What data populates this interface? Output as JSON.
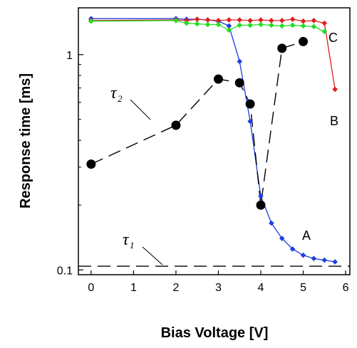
{
  "chart_data": {
    "type": "line",
    "xlabel": "Bias Voltage [V]",
    "ylabel": "Response time [ms]",
    "xlim": [
      -0.3,
      6.1
    ],
    "ylim": [
      0.095,
      1.65
    ],
    "yscale": "log",
    "x_ticks": [
      "0",
      "1",
      "2",
      "3",
      "4",
      "5",
      "6"
    ],
    "y_ticks": [
      "0.1",
      "1"
    ],
    "grid": false,
    "series": [
      {
        "label": "A",
        "color": "#1f3fe0",
        "style": "solid",
        "marker": "diamond",
        "x": [
          0,
          2,
          2.25,
          2.5,
          2.75,
          3,
          3.25,
          3.5,
          3.75,
          4,
          4.25,
          4.5,
          4.75,
          5,
          5.25,
          5.5,
          5.75
        ],
        "y": [
          1.47,
          1.47,
          1.46,
          1.46,
          1.45,
          1.43,
          1.36,
          0.93,
          0.49,
          0.22,
          0.165,
          0.14,
          0.125,
          0.117,
          0.113,
          0.111,
          0.109
        ]
      },
      {
        "label": "B",
        "color": "#e02020",
        "style": "solid",
        "marker": "diamond",
        "x": [
          0,
          2,
          2.25,
          2.5,
          2.75,
          3,
          3.25,
          3.5,
          3.75,
          4,
          4.25,
          4.5,
          4.75,
          5,
          5.25,
          5.5,
          5.75
        ],
        "y": [
          1.44,
          1.45,
          1.44,
          1.46,
          1.45,
          1.44,
          1.45,
          1.45,
          1.44,
          1.45,
          1.44,
          1.44,
          1.46,
          1.43,
          1.44,
          1.4,
          0.69
        ]
      },
      {
        "label": "C",
        "color": "#22dd22",
        "style": "solid",
        "marker": "diamond",
        "x": [
          0,
          2,
          2.25,
          2.5,
          2.75,
          3,
          3.25,
          3.5,
          3.75,
          4,
          4.25,
          4.5,
          4.75,
          5,
          5.25,
          5.5
        ],
        "y": [
          1.43,
          1.44,
          1.4,
          1.39,
          1.38,
          1.38,
          1.3,
          1.37,
          1.37,
          1.38,
          1.37,
          1.36,
          1.37,
          1.36,
          1.35,
          1.28
        ]
      },
      {
        "label": "τ2",
        "color": "#000000",
        "style": "dashed",
        "marker": "circle",
        "x": [
          0,
          2,
          3,
          3.5,
          3.75,
          4,
          4.5,
          5
        ],
        "y": [
          0.31,
          0.47,
          0.77,
          0.74,
          0.59,
          0.2,
          1.07,
          1.15
        ]
      },
      {
        "label": "τ1",
        "color": "#000000",
        "style": "dashed",
        "marker": "none",
        "x": [
          -0.3,
          6.1
        ],
        "y": [
          0.104,
          0.104
        ]
      }
    ],
    "annotations": {
      "A": "A",
      "B": "B",
      "C": "C",
      "tau2_main": "τ",
      "tau2_sub": "2",
      "tau1_main": "τ",
      "tau1_sub": "1"
    }
  }
}
